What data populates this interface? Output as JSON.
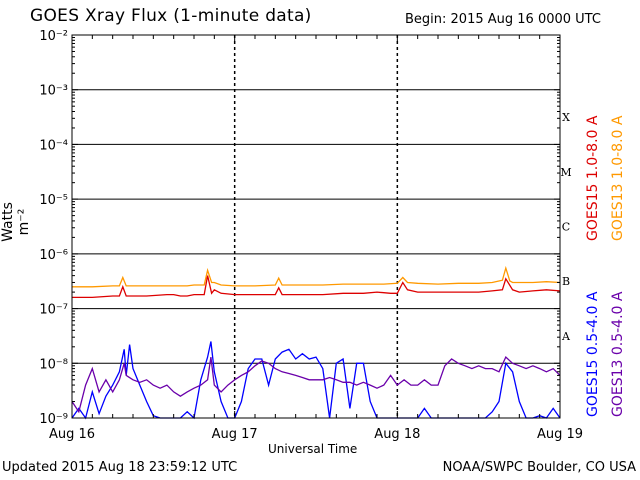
{
  "header": {
    "title": "GOES Xray Flux (1-minute data)",
    "begin": "Begin:  2015 Aug 16 0000 UTC"
  },
  "footer": {
    "updated": "Updated 2015 Aug 18 23:59:12 UTC",
    "credit": "NOAA/SWPC Boulder, CO USA"
  },
  "chart_data": {
    "type": "line",
    "title": "GOES Xray Flux (1-minute data)",
    "xlabel": "Universal Time",
    "ylabel": "Watts m⁻²",
    "yscale": "log",
    "ylim": [
      1e-09,
      0.01
    ],
    "xlim": [
      0,
      72
    ],
    "x_unit": "hours since 2015 Aug 16 0000 UTC",
    "x_ticks": [
      "Aug 16",
      "Aug 17",
      "Aug 18",
      "Aug 19"
    ],
    "y_ticks": [
      "10⁻⁹",
      "10⁻⁸",
      "10⁻⁷",
      "10⁻⁶",
      "10⁻⁵",
      "10⁻⁴",
      "10⁻³",
      "10⁻²"
    ],
    "flare_classes": [
      "A",
      "B",
      "C",
      "M",
      "X"
    ],
    "grid": true,
    "colors": {
      "goes15_long": "#dd0000",
      "goes13_long": "#ff9900",
      "goes15_short": "#0000ff",
      "goes13_short": "#6a00aa"
    },
    "series": [
      {
        "name": "GOES15 1.0-8.0 A",
        "key": "goes15_long",
        "x": [
          0,
          3,
          6,
          7,
          7.5,
          8,
          11,
          14,
          15,
          16,
          17,
          18,
          19.5,
          20,
          20.6,
          21,
          22,
          24,
          27,
          30,
          30.5,
          31,
          34,
          37,
          40,
          43,
          45,
          47,
          48,
          48.8,
          49.5,
          51,
          54,
          57,
          60,
          62,
          63.5,
          64,
          65,
          66,
          68,
          70,
          72
        ],
        "y": [
          1.6e-07,
          1.6e-07,
          1.7e-07,
          1.7e-07,
          2.5e-07,
          1.7e-07,
          1.7e-07,
          1.8e-07,
          1.8e-07,
          1.7e-07,
          1.7e-07,
          1.8e-07,
          1.8e-07,
          4e-07,
          1.9e-07,
          2.2e-07,
          1.9e-07,
          1.8e-07,
          1.8e-07,
          1.8e-07,
          2.4e-07,
          1.8e-07,
          1.8e-07,
          1.8e-07,
          1.9e-07,
          1.9e-07,
          2e-07,
          1.9e-07,
          1.9e-07,
          3e-07,
          2.2e-07,
          2e-07,
          2e-07,
          2e-07,
          2e-07,
          2.1e-07,
          2.2e-07,
          3.5e-07,
          2.2e-07,
          2e-07,
          2.1e-07,
          2.2e-07,
          2.1e-07
        ]
      },
      {
        "name": "GOES13 1.0-8.0 A",
        "key": "goes13_long",
        "x": [
          0,
          3,
          6,
          7,
          7.5,
          8,
          11,
          14,
          17,
          18,
          19.5,
          20,
          20.6,
          21,
          22,
          24,
          27,
          30,
          30.5,
          31,
          34,
          37,
          40,
          43,
          46,
          48,
          48.8,
          49.5,
          51,
          54,
          57,
          60,
          62,
          63.5,
          64,
          64.6,
          65,
          68,
          70,
          72
        ],
        "y": [
          2.5e-07,
          2.5e-07,
          2.6e-07,
          2.6e-07,
          3.7e-07,
          2.6e-07,
          2.6e-07,
          2.6e-07,
          2.6e-07,
          2.7e-07,
          2.7e-07,
          5e-07,
          3e-07,
          3e-07,
          2.7e-07,
          2.6e-07,
          2.6e-07,
          2.7e-07,
          3.6e-07,
          2.7e-07,
          2.7e-07,
          2.7e-07,
          2.8e-07,
          2.8e-07,
          2.8e-07,
          2.9e-07,
          3.7e-07,
          3e-07,
          2.9e-07,
          2.8e-07,
          2.9e-07,
          2.9e-07,
          3e-07,
          3.3e-07,
          5.5e-07,
          3.2e-07,
          3e-07,
          3e-07,
          3.1e-07,
          3e-07
        ]
      },
      {
        "name": "GOES15 0.5-4.0 A",
        "key": "goes15_short",
        "x": [
          0,
          1,
          2,
          3,
          4,
          5,
          6,
          7,
          7.7,
          8,
          8.5,
          9,
          10,
          11,
          12,
          13,
          14,
          15,
          16,
          17,
          18,
          19,
          20,
          20.5,
          21,
          22,
          23,
          24,
          25,
          26,
          27,
          28,
          29,
          30,
          31,
          32,
          33,
          34,
          35,
          36,
          37,
          38,
          39,
          40,
          41,
          42,
          43,
          44,
          45,
          46,
          47,
          48,
          49,
          50,
          51,
          52,
          53,
          54,
          55,
          56,
          57,
          58,
          59,
          60,
          61,
          62,
          63,
          64,
          65,
          66,
          67,
          68,
          69,
          70,
          71,
          72
        ],
        "y": [
          1e-09,
          1.5e-09,
          1e-09,
          3e-09,
          1.2e-09,
          2.5e-09,
          4e-09,
          7e-09,
          1.8e-08,
          6e-09,
          2.2e-08,
          8e-09,
          4e-09,
          2e-09,
          1.1e-09,
          1e-09,
          1e-09,
          1e-09,
          1e-09,
          1.3e-09,
          1e-09,
          5e-09,
          1.3e-08,
          2.5e-08,
          7e-09,
          2e-09,
          1e-09,
          1e-09,
          2e-09,
          8e-09,
          1.2e-08,
          1.2e-08,
          4e-09,
          1.2e-08,
          1.6e-08,
          1.8e-08,
          1.2e-08,
          1.5e-08,
          1.2e-08,
          1.3e-08,
          8e-09,
          1e-09,
          1e-08,
          1.2e-08,
          1.5e-09,
          1e-08,
          1e-08,
          2e-09,
          1e-09,
          1e-09,
          1e-09,
          1e-09,
          1e-09,
          1e-09,
          1e-09,
          1.5e-09,
          1e-09,
          1e-09,
          1e-09,
          1e-09,
          1e-09,
          1e-09,
          1e-09,
          1e-09,
          1e-09,
          1.3e-09,
          2e-09,
          1e-08,
          7e-09,
          2e-09,
          1e-09,
          1e-09,
          1.1e-09,
          1e-09,
          1.5e-09,
          1e-09
        ]
      },
      {
        "name": "GOES13 0.5-4.0 A",
        "key": "goes13_short",
        "x": [
          0,
          1,
          2,
          3,
          4,
          5,
          6,
          7,
          7.7,
          8,
          9,
          10,
          11,
          12,
          13,
          14,
          15,
          16,
          17,
          18,
          19,
          20,
          20.5,
          21,
          22,
          23,
          24,
          25,
          26,
          27,
          28,
          29,
          30,
          31,
          32,
          33,
          34,
          35,
          36,
          37,
          38,
          39,
          40,
          41,
          42,
          43,
          44,
          45,
          46,
          47,
          48,
          49,
          50,
          51,
          52,
          53,
          54,
          55,
          56,
          57,
          58,
          59,
          60,
          61,
          62,
          63,
          64,
          65,
          66,
          67,
          68,
          69,
          70,
          71,
          72
        ],
        "y": [
          2e-09,
          1.3e-09,
          4e-09,
          8e-09,
          3e-09,
          5e-09,
          3e-09,
          5e-09,
          1e-08,
          6e-09,
          5e-09,
          4.5e-09,
          5e-09,
          4e-09,
          3.5e-09,
          4e-09,
          3e-09,
          2.5e-09,
          3e-09,
          3.5e-09,
          4e-09,
          5e-09,
          1.3e-08,
          4e-09,
          3e-09,
          4e-09,
          5e-09,
          6e-09,
          7e-09,
          9e-09,
          1.1e-08,
          1e-08,
          8e-09,
          7e-09,
          6.5e-09,
          6e-09,
          5.5e-09,
          5e-09,
          5e-09,
          5e-09,
          5.5e-09,
          5e-09,
          4.5e-09,
          4.5e-09,
          4e-09,
          4.5e-09,
          4e-09,
          3.5e-09,
          4e-09,
          6e-09,
          4e-09,
          5e-09,
          4e-09,
          4e-09,
          5e-09,
          4e-09,
          4e-09,
          9e-09,
          1.2e-08,
          1e-08,
          9e-09,
          8e-09,
          9e-09,
          8e-09,
          8e-09,
          7e-09,
          1.3e-08,
          1e-08,
          9e-09,
          8e-09,
          9e-09,
          8e-09,
          7e-09,
          8e-09,
          6e-09
        ]
      }
    ]
  }
}
